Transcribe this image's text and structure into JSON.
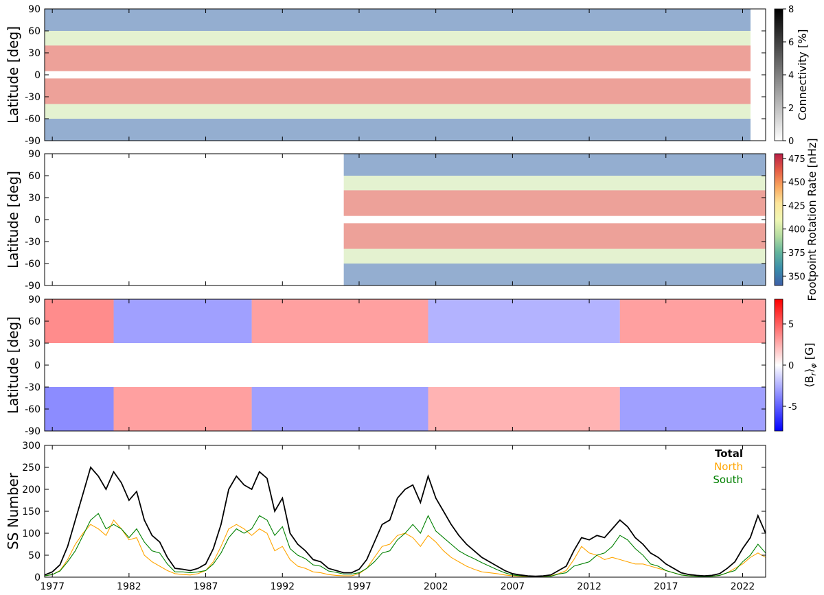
{
  "chart_data": [
    {
      "type": "heatmap",
      "ylabel": "Latitude [deg]",
      "yticks": [
        90,
        60,
        30,
        0,
        -30,
        -60,
        -90
      ],
      "xlim": [
        1976.5,
        2023.5
      ],
      "ylim": [
        -90,
        90
      ],
      "colorbar": {
        "label": "Connectivity [%]",
        "colormap": "Greys",
        "range": [
          0,
          8
        ],
        "ticks": [
          0,
          2,
          4,
          6,
          8
        ]
      },
      "overlay": {
        "colormap": "Spectral_r",
        "range": [
          340,
          480
        ],
        "start": 1976.5,
        "bands": [
          {
            "lat": [
              60,
              90
            ],
            "value": 345
          },
          {
            "lat": [
              40,
              60
            ],
            "value": 400
          },
          {
            "lat": [
              5,
              40
            ],
            "value": 465
          },
          {
            "lat": [
              -40,
              -5
            ],
            "value": 465
          },
          {
            "lat": [
              -60,
              -40
            ],
            "value": 400
          },
          {
            "lat": [
              -90,
              -60
            ],
            "value": 345
          }
        ]
      }
    },
    {
      "type": "heatmap",
      "ylabel": "Latitude [deg]",
      "yticks": [
        90,
        60,
        30,
        0,
        -30,
        -60,
        -90
      ],
      "xlim": [
        1976.5,
        2023.5
      ],
      "ylim": [
        -90,
        90
      ],
      "colorbar": {
        "label": "Footpoint Rotation Rate [nHz]",
        "colormap": "Spectral_r",
        "range": [
          340,
          480
        ],
        "ticks": [
          350,
          375,
          400,
          425,
          450,
          475
        ]
      },
      "data_start": 1996.0,
      "bands": [
        {
          "lat": [
            60,
            90
          ],
          "value": 345
        },
        {
          "lat": [
            40,
            60
          ],
          "value": 400
        },
        {
          "lat": [
            5,
            40
          ],
          "value": 465
        },
        {
          "lat": [
            -40,
            -5
          ],
          "value": 465
        },
        {
          "lat": [
            -60,
            -40
          ],
          "value": 400
        },
        {
          "lat": [
            -90,
            -60
          ],
          "value": 345
        }
      ]
    },
    {
      "type": "heatmap",
      "ylabel": "Latitude [deg]",
      "yticks": [
        90,
        60,
        30,
        0,
        -30,
        -60,
        -90
      ],
      "xlim": [
        1976.5,
        2023.5
      ],
      "ylim": [
        -90,
        90
      ],
      "colorbar": {
        "label": "⟨B_r⟩_φ [G]",
        "label_main": "⟨B",
        "label_sub1": "r",
        "label_mid": "⟩",
        "label_sub2": "φ",
        "label_unit": " [G]",
        "colormap": "bwr",
        "range": [
          -8,
          8
        ],
        "ticks": [
          -5,
          0,
          5
        ]
      },
      "polar_segments": [
        {
          "x": [
            1976.5,
            1981.0
          ],
          "north": 6,
          "south": -6
        },
        {
          "x": [
            1981.0,
            1990.0
          ],
          "north": -5,
          "south": 5
        },
        {
          "x": [
            1990.0,
            2001.5
          ],
          "north": 5,
          "south": -5
        },
        {
          "x": [
            2001.5,
            2014.0
          ],
          "north": -4,
          "south": 4
        },
        {
          "x": [
            2014.0,
            2023.5
          ],
          "north": 5,
          "south": -5
        }
      ]
    },
    {
      "type": "line",
      "ylabel": "SS Number",
      "xlim": [
        1976.5,
        2023.5
      ],
      "ylim": [
        0,
        300
      ],
      "yticks": [
        0,
        50,
        100,
        150,
        200,
        250,
        300
      ],
      "xticks": [
        1977,
        1982,
        1987,
        1992,
        1997,
        2002,
        2007,
        2012,
        2017,
        2022
      ],
      "legend_position": "top-right",
      "series": [
        {
          "name": "Total",
          "color": "#000000",
          "x": [
            1976.5,
            1977.0,
            1977.5,
            1978.0,
            1978.5,
            1979.0,
            1979.5,
            1980.0,
            1980.5,
            1981.0,
            1981.5,
            1982.0,
            1982.5,
            1983.0,
            1983.5,
            1984.0,
            1984.5,
            1985.0,
            1985.5,
            1986.0,
            1986.5,
            1987.0,
            1987.5,
            1988.0,
            1988.5,
            1989.0,
            1989.5,
            1990.0,
            1990.5,
            1991.0,
            1991.5,
            1992.0,
            1992.5,
            1993.0,
            1993.5,
            1994.0,
            1994.5,
            1995.0,
            1995.5,
            1996.0,
            1996.5,
            1997.0,
            1997.5,
            1998.0,
            1998.5,
            1999.0,
            1999.5,
            2000.0,
            2000.5,
            2001.0,
            2001.5,
            2002.0,
            2002.5,
            2003.0,
            2003.5,
            2004.0,
            2004.5,
            2005.0,
            2005.5,
            2006.0,
            2006.5,
            2007.0,
            2007.5,
            2008.0,
            2008.5,
            2009.0,
            2009.5,
            2010.0,
            2010.5,
            2011.0,
            2011.5,
            2012.0,
            2012.5,
            2013.0,
            2013.5,
            2014.0,
            2014.5,
            2015.0,
            2015.5,
            2016.0,
            2016.5,
            2017.0,
            2017.5,
            2018.0,
            2018.5,
            2019.0,
            2019.5,
            2020.0,
            2020.5,
            2021.0,
            2021.5,
            2022.0,
            2022.5,
            2023.0,
            2023.5
          ],
          "values": [
            5,
            12,
            28,
            70,
            130,
            190,
            250,
            230,
            200,
            240,
            215,
            175,
            195,
            130,
            95,
            80,
            45,
            20,
            18,
            15,
            20,
            30,
            65,
            120,
            200,
            230,
            210,
            200,
            240,
            225,
            150,
            180,
            100,
            75,
            60,
            40,
            35,
            20,
            15,
            10,
            10,
            18,
            40,
            80,
            120,
            130,
            180,
            200,
            210,
            170,
            230,
            180,
            150,
            120,
            95,
            75,
            60,
            45,
            35,
            25,
            15,
            8,
            5,
            3,
            2,
            3,
            5,
            15,
            25,
            60,
            90,
            85,
            95,
            90,
            110,
            130,
            115,
            90,
            75,
            55,
            45,
            30,
            20,
            10,
            6,
            4,
            3,
            4,
            8,
            20,
            35,
            65,
            90,
            140,
            100
          ]
        },
        {
          "name": "North",
          "color": "#ffa500",
          "x": [
            1976.5,
            1977.0,
            1977.5,
            1978.0,
            1978.5,
            1979.0,
            1979.5,
            1980.0,
            1980.5,
            1981.0,
            1981.5,
            1982.0,
            1982.5,
            1983.0,
            1983.5,
            1984.0,
            1984.5,
            1985.0,
            1985.5,
            1986.0,
            1986.5,
            1987.0,
            1987.5,
            1988.0,
            1988.5,
            1989.0,
            1989.5,
            1990.0,
            1990.5,
            1991.0,
            1991.5,
            1992.0,
            1992.5,
            1993.0,
            1993.5,
            1994.0,
            1994.5,
            1995.0,
            1995.5,
            1996.0,
            1996.5,
            1997.0,
            1997.5,
            1998.0,
            1998.5,
            1999.0,
            1999.5,
            2000.0,
            2000.5,
            2001.0,
            2001.5,
            2002.0,
            2002.5,
            2003.0,
            2003.5,
            2004.0,
            2004.5,
            2005.0,
            2005.5,
            2006.0,
            2006.5,
            2007.0,
            2007.5,
            2008.0,
            2008.5,
            2009.0,
            2009.5,
            2010.0,
            2010.5,
            2011.0,
            2011.5,
            2012.0,
            2012.5,
            2013.0,
            2013.5,
            2014.0,
            2014.5,
            2015.0,
            2015.5,
            2016.0,
            2016.5,
            2017.0,
            2017.5,
            2018.0,
            2018.5,
            2019.0,
            2019.5,
            2020.0,
            2020.5,
            2021.0,
            2021.5,
            2022.0,
            2022.5,
            2023.0,
            2023.5
          ],
          "values": [
            3,
            6,
            15,
            40,
            75,
            100,
            120,
            110,
            95,
            130,
            110,
            85,
            90,
            50,
            35,
            25,
            15,
            8,
            6,
            5,
            8,
            15,
            35,
            70,
            110,
            120,
            110,
            95,
            110,
            100,
            60,
            70,
            40,
            25,
            20,
            12,
            10,
            6,
            4,
            3,
            3,
            8,
            20,
            45,
            70,
            75,
            95,
            100,
            90,
            70,
            95,
            80,
            60,
            45,
            35,
            25,
            18,
            12,
            10,
            8,
            5,
            3,
            2,
            1,
            1,
            1,
            3,
            8,
            15,
            40,
            70,
            55,
            50,
            40,
            45,
            40,
            35,
            30,
            30,
            25,
            20,
            15,
            10,
            5,
            3,
            2,
            2,
            2,
            4,
            10,
            20,
            30,
            45,
            55,
            45
          ]
        },
        {
          "name": "South",
          "color": "#008000",
          "x": [
            1976.5,
            1977.0,
            1977.5,
            1978.0,
            1978.5,
            1979.0,
            1979.5,
            1980.0,
            1980.5,
            1981.0,
            1981.5,
            1982.0,
            1982.5,
            1983.0,
            1983.5,
            1984.0,
            1984.5,
            1985.0,
            1985.5,
            1986.0,
            1986.5,
            1987.0,
            1987.5,
            1988.0,
            1988.5,
            1989.0,
            1989.5,
            1990.0,
            1990.5,
            1991.0,
            1991.5,
            1992.0,
            1992.5,
            1993.0,
            1993.5,
            1994.0,
            1994.5,
            1995.0,
            1995.5,
            1996.0,
            1996.5,
            1997.0,
            1997.5,
            1998.0,
            1998.5,
            1999.0,
            1999.5,
            2000.0,
            2000.5,
            2001.0,
            2001.5,
            2002.0,
            2002.5,
            2003.0,
            2003.5,
            2004.0,
            2004.5,
            2005.0,
            2005.5,
            2006.0,
            2006.5,
            2007.0,
            2007.5,
            2008.0,
            2008.5,
            2009.0,
            2009.5,
            2010.0,
            2010.5,
            2011.0,
            2011.5,
            2012.0,
            2012.5,
            2013.0,
            2013.5,
            2014.0,
            2014.5,
            2015.0,
            2015.5,
            2016.0,
            2016.5,
            2017.0,
            2017.5,
            2018.0,
            2018.5,
            2019.0,
            2019.5,
            2020.0,
            2020.5,
            2021.0,
            2021.5,
            2022.0,
            2022.5,
            2023.0,
            2023.5
          ],
          "values": [
            3,
            6,
            14,
            35,
            60,
            95,
            130,
            145,
            110,
            120,
            110,
            90,
            110,
            80,
            60,
            55,
            30,
            12,
            12,
            10,
            12,
            15,
            30,
            55,
            90,
            110,
            100,
            110,
            140,
            130,
            95,
            115,
            65,
            50,
            42,
            28,
            25,
            14,
            11,
            7,
            7,
            10,
            20,
            35,
            55,
            60,
            85,
            100,
            120,
            100,
            140,
            105,
            90,
            75,
            60,
            50,
            42,
            33,
            25,
            17,
            10,
            5,
            3,
            2,
            1,
            2,
            2,
            7,
            10,
            25,
            30,
            35,
            50,
            55,
            70,
            95,
            85,
            65,
            50,
            30,
            25,
            15,
            10,
            5,
            3,
            2,
            1,
            2,
            4,
            10,
            15,
            35,
            50,
            75,
            55
          ]
        }
      ]
    }
  ]
}
